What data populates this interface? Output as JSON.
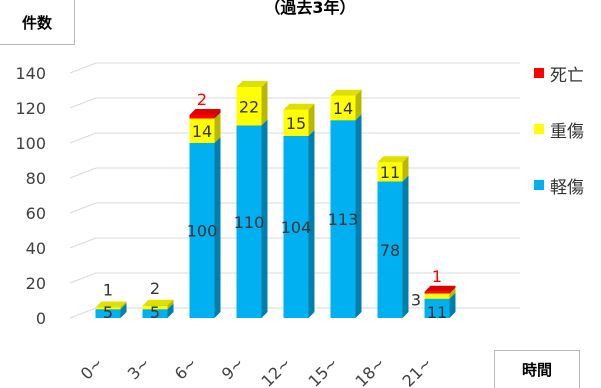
{
  "title": "（過去3年）",
  "ylabel": "件数",
  "xlabel": "時間",
  "colors": {
    "light": "#00b0f0",
    "serious": "#ffff00",
    "death": "#ff0000"
  },
  "chart_data": {
    "type": "bar",
    "stacked": true,
    "categories": [
      "0~",
      "3~",
      "6~",
      "9~",
      "12~",
      "15~",
      "18~",
      "21~"
    ],
    "series": [
      {
        "name": "軽傷",
        "values": [
          5,
          5,
          100,
          110,
          104,
          113,
          78,
          11
        ]
      },
      {
        "name": "重傷",
        "values": [
          1,
          2,
          14,
          22,
          15,
          14,
          11,
          3
        ]
      },
      {
        "name": "死亡",
        "values": [
          0,
          0,
          2,
          0,
          0,
          0,
          0,
          1
        ]
      }
    ],
    "yticks": [
      "0",
      "20",
      "40",
      "60",
      "80",
      "100",
      "120",
      "140"
    ],
    "ylim": [
      0,
      140
    ],
    "grid": true,
    "legend_position": "right"
  },
  "legend": [
    {
      "label": "死亡",
      "color": "#ff0000"
    },
    {
      "label": "重傷",
      "color": "#ffff00"
    },
    {
      "label": "軽傷",
      "color": "#00b0f0"
    }
  ]
}
